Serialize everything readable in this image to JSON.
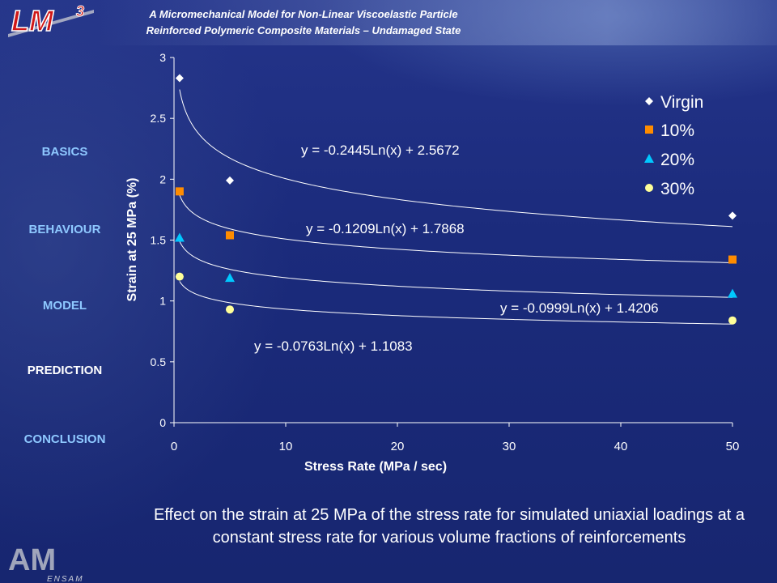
{
  "header": {
    "title_line1": "A Micromechanical Model for Non-Linear Viscoelastic Particle",
    "title_line2": "Reinforced Polymeric Composite Materials – Undamaged State",
    "logo_text": "LM",
    "logo_sup": "3"
  },
  "nav": {
    "items": [
      {
        "label": "BASICS"
      },
      {
        "label": "BEHAVIOUR"
      },
      {
        "label": "MODEL"
      },
      {
        "label": "PREDICTION"
      },
      {
        "label": "CONCLUSION"
      }
    ],
    "active": "PREDICTION"
  },
  "colors": {
    "virgin": "#ffffff",
    "p10": "#ff8c00",
    "p20": "#00c8ff",
    "p30": "#ffff99",
    "nav_link": "#8ec8ff",
    "nav_active": "#ffffff"
  },
  "chart_data": {
    "type": "scatter",
    "xlabel": "Stress Rate (MPa / sec)",
    "ylabel": "Strain at 25 MPa (%)",
    "xlim": [
      0,
      50
    ],
    "ylim": [
      0,
      3
    ],
    "xticks": [
      "0",
      "10",
      "20",
      "30",
      "40",
      "50"
    ],
    "yticks": [
      "0",
      "0.5",
      "1",
      "1.5",
      "2",
      "2.5",
      "3"
    ],
    "grid": false,
    "legend_position": "top-right",
    "x": [
      0.5,
      5,
      50
    ],
    "series": [
      {
        "name": "Virgin",
        "marker": "diamond",
        "values": [
          2.83,
          1.99,
          1.7
        ],
        "fit": {
          "a": -0.2445,
          "b": 2.5672,
          "label": "y = -0.2445Ln(x) + 2.5672"
        }
      },
      {
        "name": "10%",
        "marker": "square",
        "values": [
          1.9,
          1.54,
          1.34
        ],
        "fit": {
          "a": -0.1209,
          "b": 1.7868,
          "label": "y = -0.1209Ln(x) + 1.7868"
        }
      },
      {
        "name": "20%",
        "marker": "triangle",
        "values": [
          1.52,
          1.19,
          1.06
        ],
        "fit": {
          "a": -0.0999,
          "b": 1.4206,
          "label": "y = -0.0999Ln(x) + 1.4206"
        }
      },
      {
        "name": "30%",
        "marker": "circle",
        "values": [
          1.2,
          0.93,
          0.84
        ],
        "fit": {
          "a": -0.0763,
          "b": 1.1083,
          "label": "y = -0.0763Ln(x) + 1.1083"
        }
      }
    ]
  },
  "caption": "Effect on the strain at 25 MPa of the stress rate for simulated uniaxial loadings at a constant stress rate for various volume fractions of reinforcements",
  "footer_logo": {
    "text": "AM",
    "sub": "ENSAM"
  }
}
